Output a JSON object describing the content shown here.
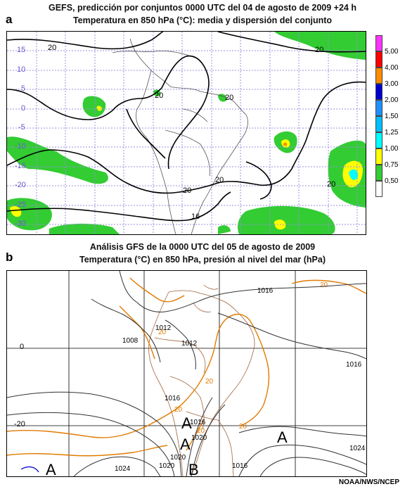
{
  "panel_a": {
    "letter": "a",
    "title_line1": "GEFS, predicción por conjuntos 0000 UTC del 04 de agosto de 2009  +24 h",
    "title_line2": "Temperatura en 850 hPa (°C): media y dispersión del conjunto",
    "lat_labels": [
      "15",
      "10",
      "5",
      "0",
      "-5",
      "-10",
      "-15",
      "-20",
      "-25",
      "-30"
    ],
    "contour_labels": [
      "20",
      "20",
      "20",
      "20",
      "20",
      "20",
      "20",
      "16"
    ],
    "legend": {
      "values": [
        "5,00",
        "4,00",
        "3,00",
        "2,00",
        "1,50",
        "1,25",
        "1,00",
        "0,75",
        "0,50"
      ],
      "colors": [
        "#ff33ff",
        "#ff0000",
        "#ff8c00",
        "#0000cd",
        "#1e90ff",
        "#00bfff",
        "#00ffff",
        "#ffff00",
        "#33cc33",
        "#ffffff"
      ]
    }
  },
  "panel_b": {
    "letter": "b",
    "title_line1": "Análisis GFS de la 0000 UTC del 05 de agosto de 2009",
    "title_line2": "Temperatura (°C) en 850 hPa, presión al nivel del mar (hPa)",
    "lat_labels": [
      "0",
      "-20"
    ],
    "pressure_labels": [
      "1016",
      "1012",
      "1008",
      "1012",
      "1016",
      "1016",
      "1024",
      "1024",
      "1020",
      "1016",
      "1020",
      "1016",
      "1020"
    ],
    "temp_labels": [
      "20",
      "20",
      "20",
      "20",
      "20",
      "20"
    ],
    "centers": [
      "A",
      "A",
      "A",
      "A",
      "B"
    ]
  },
  "credit": "NOAA/NWS/NCEP",
  "colors": {
    "shade_green": "#33cc33",
    "shade_yellow": "#ffff00",
    "shade_cyan": "#00ffff",
    "grid_violet": "#9b8fe0",
    "temp_orange": "#e07b00",
    "border_brown": "#a0643c"
  }
}
